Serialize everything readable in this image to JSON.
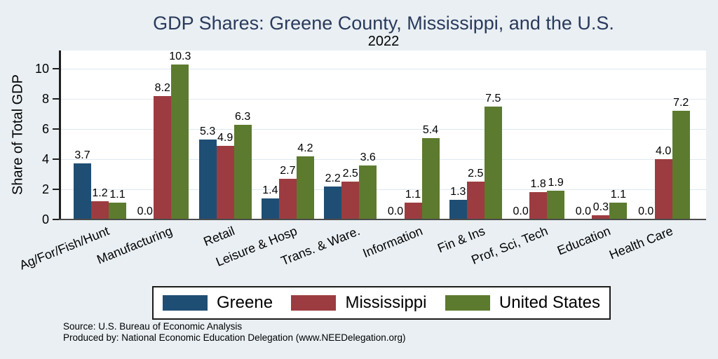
{
  "chart_data": {
    "type": "bar",
    "title": "GDP Shares: Greene County, Mississippi, and the U.S.",
    "subtitle": "2022",
    "ylabel": "Share of Total GDP",
    "ylim": [
      0,
      11.2
    ],
    "yticks": [
      0,
      2,
      4,
      6,
      8,
      10
    ],
    "grid": true,
    "legend_position": "bottom",
    "value_label_decimals": 1,
    "categories": [
      "Ag/For/Fish/Hunt",
      "Manufacturing",
      "Retail",
      "Leisure & Hosp",
      "Trans. & Ware.",
      "Information",
      "Fin & Ins",
      "Prof, Sci, Tech",
      "Education",
      "Health Care"
    ],
    "series": [
      {
        "name": "Greene",
        "color": "#1F4E74",
        "values": [
          3.7,
          0.0,
          5.3,
          1.4,
          2.2,
          0.0,
          1.3,
          0.0,
          0.0,
          0.0
        ]
      },
      {
        "name": "Mississippi",
        "color": "#9C3C40",
        "values": [
          1.2,
          8.2,
          4.9,
          2.7,
          2.5,
          1.1,
          2.5,
          1.8,
          0.3,
          4.0
        ]
      },
      {
        "name": "United States",
        "color": "#5C7B2E",
        "values": [
          1.1,
          10.3,
          6.3,
          4.2,
          3.6,
          5.4,
          7.5,
          1.9,
          1.1,
          7.2
        ]
      }
    ]
  },
  "footer": {
    "source_line": "Source: U.S. Bureau of Economic Analysis",
    "produced_line": "Produced by: National Economic Education Delegation (www.NEEDelegation.org)"
  },
  "colors": {
    "background": "#E9EFF3",
    "plot_background": "#FFFFFF",
    "title_text": "#2A3A5C",
    "grid_line": "#DEE8F0",
    "axis_line": "#1F1F1F"
  }
}
